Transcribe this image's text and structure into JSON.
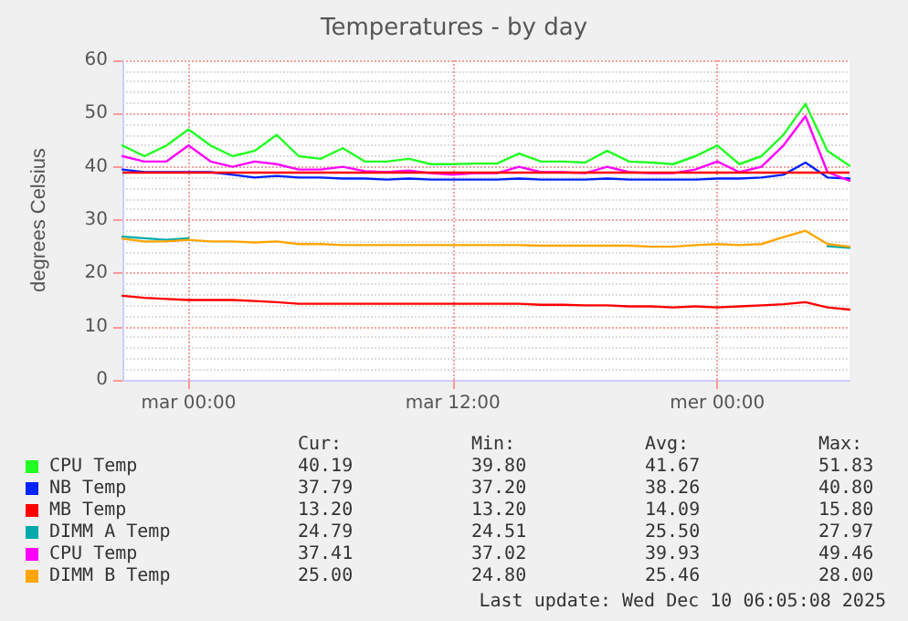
{
  "chart_data": {
    "type": "line",
    "title": "Temperatures - by day",
    "ylabel": "degrees Celsius",
    "categories": [
      null,
      null,
      null,
      "mar 00:00",
      null,
      null,
      null,
      null,
      null,
      null,
      null,
      null,
      null,
      null,
      null,
      "mar 12:00",
      null,
      null,
      null,
      null,
      null,
      null,
      null,
      null,
      null,
      null,
      null,
      "mer 00:00",
      null,
      null,
      null,
      null,
      null,
      null
    ],
    "series": [
      {
        "name": "CPU Temp",
        "color": "#22ff22",
        "values": [
          44,
          42,
          44,
          47,
          44,
          42,
          43,
          46,
          42,
          41.5,
          43.5,
          41,
          41,
          41.5,
          40.5,
          40.5,
          40.6,
          40.6,
          42.5,
          41,
          41,
          40.8,
          43,
          41,
          40.8,
          40.5,
          42,
          44,
          40.5,
          42,
          46,
          51.8,
          43,
          40.2
        ]
      },
      {
        "name": "NB Temp",
        "color": "#0022ff",
        "values": [
          39.5,
          39,
          39,
          39,
          39,
          38.5,
          38,
          38.3,
          38,
          38,
          37.8,
          37.8,
          37.6,
          37.8,
          37.6,
          37.6,
          37.6,
          37.6,
          37.8,
          37.6,
          37.6,
          37.6,
          37.8,
          37.6,
          37.6,
          37.6,
          37.6,
          37.8,
          37.8,
          38,
          38.5,
          40.8,
          38,
          37.8
        ]
      },
      {
        "name": "MB Temp",
        "color": "#ff0000",
        "values": [
          15.8,
          15.4,
          15.2,
          15,
          15,
          15,
          14.8,
          14.6,
          14.3,
          14.3,
          14.3,
          14.3,
          14.3,
          14.3,
          14.3,
          14.3,
          14.3,
          14.3,
          14.3,
          14.1,
          14.1,
          14,
          14,
          13.8,
          13.8,
          13.6,
          13.8,
          13.6,
          13.8,
          14,
          14.2,
          14.6,
          13.6,
          13.2
        ]
      },
      {
        "name": "DIMM A Temp",
        "color": "#00aaaa",
        "values": [
          26.9,
          26.6,
          26.3,
          26.6,
          null,
          null,
          null,
          null,
          null,
          null,
          null,
          null,
          null,
          null,
          null,
          null,
          null,
          null,
          null,
          null,
          null,
          null,
          null,
          null,
          null,
          null,
          null,
          null,
          null,
          null,
          null,
          null,
          25.1,
          24.8
        ]
      },
      {
        "name": "CPU Temp",
        "color": "#ff00ff",
        "values": [
          42,
          41,
          41,
          44,
          41,
          40,
          41,
          40.5,
          39.5,
          39.5,
          40,
          39.2,
          39,
          39.3,
          38.8,
          38.5,
          38.8,
          38.8,
          40,
          39,
          39,
          38.8,
          40,
          39,
          38.8,
          38.8,
          39.5,
          41,
          39,
          40,
          44,
          49.5,
          39,
          37.4
        ]
      },
      {
        "name": "DIMM B Temp",
        "color": "#ffa500",
        "values": [
          26.5,
          26,
          26,
          26.3,
          26,
          26,
          25.8,
          26,
          25.5,
          25.5,
          25.3,
          25.3,
          25.3,
          25.3,
          25.3,
          25.3,
          25.3,
          25.3,
          25.3,
          25.2,
          25.2,
          25.2,
          25.2,
          25.2,
          25,
          25,
          25.3,
          25.5,
          25.3,
          25.5,
          26.8,
          28,
          25.5,
          25
        ]
      }
    ],
    "ylim": [
      0,
      60
    ],
    "yticks": [
      0,
      10,
      20,
      30,
      40,
      50,
      60
    ],
    "ref_lines": [
      {
        "axis": "y",
        "value": 39,
        "color": "#ff0000"
      }
    ],
    "grid": true,
    "legend": "bottom",
    "marker": "none",
    "line_style": "solid",
    "annotations": [
      "Cur:",
      "Min:",
      "Avg:",
      "Max:",
      "40.19",
      "39.80",
      "41.67",
      "51.83",
      "37.79",
      "37.20",
      "38.26",
      "40.80",
      "13.20",
      "13.20",
      "14.09",
      "15.80",
      "24.79",
      "24.51",
      "25.50",
      "27.97",
      "37.41",
      "37.02",
      "39.93",
      "49.46",
      "25.00",
      "24.80",
      "25.46",
      "28.00",
      "Last update: Wed Dec 10 06:05:08 2025"
    ]
  }
}
